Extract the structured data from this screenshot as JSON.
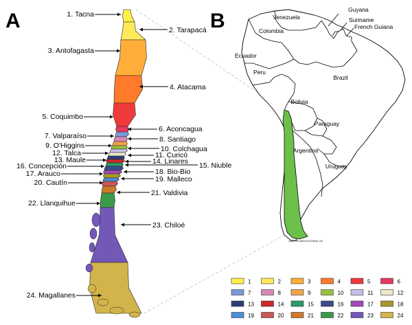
{
  "panel_a": {
    "letter": "A",
    "regions": [
      {
        "num": "1",
        "label": "1. Tacna",
        "color": "#fff04a"
      },
      {
        "num": "2",
        "label": "2. Tarapacá",
        "color": "#ffe95a"
      },
      {
        "num": "3",
        "label": "3. Antofagasta",
        "color": "#ffae3a"
      },
      {
        "num": "4",
        "label": "4. Atacama",
        "color": "#ff7a2a"
      },
      {
        "num": "5",
        "label": "5. Coquimbo",
        "color": "#ee3a3a"
      },
      {
        "num": "6",
        "label": "6. Aconcagua",
        "color": "#e8385f"
      },
      {
        "num": "7",
        "label": "7. Valparaíso",
        "color": "#7c9ad8"
      },
      {
        "num": "8",
        "label": "8. Santiago",
        "color": "#d888b8"
      },
      {
        "num": "9",
        "label": "9. O'Higgins",
        "color": "#f0a44a"
      },
      {
        "num": "10",
        "label": "10. Colchagua",
        "color": "#98c040"
      },
      {
        "num": "11",
        "label": "11. Curicó",
        "color": "#c6c0e6"
      },
      {
        "num": "12",
        "label": "12. Talca",
        "color": "#ece8c8"
      },
      {
        "num": "13",
        "label": "13. Maule",
        "color": "#2c3e78"
      },
      {
        "num": "14",
        "label": "14. Linares",
        "color": "#cc2a2a"
      },
      {
        "num": "15",
        "label": "15. Niuble",
        "color": "#2c9a6a"
      },
      {
        "num": "16",
        "label": "16. Concepción",
        "color": "#3c4a8c"
      },
      {
        "num": "17",
        "label": "17. Arauco",
        "color": "#a04ab6"
      },
      {
        "num": "18",
        "label": "18. Bio-Bio",
        "color": "#a8982a"
      },
      {
        "num": "19",
        "label": "19. Malleco",
        "color": "#4a90d8"
      },
      {
        "num": "20",
        "label": "20. Cautín",
        "color": "#c8585a"
      },
      {
        "num": "21",
        "label": "21. Valdivia",
        "color": "#ce7a2a"
      },
      {
        "num": "22",
        "label": "22. Llanquihue",
        "color": "#3a9a4a"
      },
      {
        "num": "23",
        "label": "23. Chiloé",
        "color": "#7458b8"
      },
      {
        "num": "24",
        "label": "24. Magallanes",
        "color": "#d2b44a"
      }
    ]
  },
  "panel_b": {
    "letter": "B",
    "countries": [
      "Venezuela",
      "Guyana",
      "Suriname",
      "French Guiana",
      "Colombia",
      "Ecuador",
      "Peru",
      "Brazil",
      "Bolivia",
      "Paraguay",
      "Argentina",
      "Uruguay"
    ],
    "chile_highlight_color": "#6cc04a",
    "watermark": "www.PrintableWorldMap.net"
  }
}
